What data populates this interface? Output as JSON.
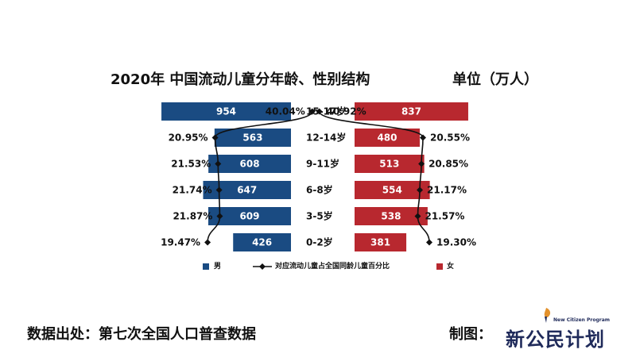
{
  "chart_data": {
    "type": "bar",
    "title": "2020年 中国流动儿童分年龄、性别结构",
    "unit": "单位（万人）",
    "categories": [
      "15-17岁",
      "12-14岁",
      "9-11岁",
      "6-8岁",
      "3-5岁",
      "0-2岁"
    ],
    "series": [
      {
        "name": "男",
        "color": "#1a4b82",
        "values": [
          954,
          563,
          608,
          647,
          609,
          426
        ]
      },
      {
        "name": "女",
        "color": "#b8282f",
        "values": [
          837,
          480,
          513,
          554,
          538,
          381
        ]
      }
    ],
    "percent_series": {
      "name": "对应流动儿童占全国同龄儿童百分比",
      "male": [
        40.04,
        20.95,
        21.53,
        21.74,
        21.87,
        19.47
      ],
      "female": [
        40.92,
        20.55,
        20.85,
        21.17,
        21.57,
        19.3
      ],
      "male_labels": [
        "40.04%",
        "20.95%",
        "21.53%",
        "21.74%",
        "21.87%",
        "19.47%"
      ],
      "female_labels": [
        "40.92%",
        "20.55%",
        "20.85%",
        "21.17%",
        "21.57%",
        "19.30%"
      ]
    },
    "legend": {
      "placement": "bottom",
      "items": [
        "男",
        "对应流动儿童占全国同龄儿童百分比",
        "女"
      ]
    }
  },
  "footer": {
    "source": "数据出处：第七次全国人口普查数据",
    "made_by_label": "制图：",
    "logo_text": "新公民计划",
    "logo_subtext": "New Citizen Program"
  }
}
